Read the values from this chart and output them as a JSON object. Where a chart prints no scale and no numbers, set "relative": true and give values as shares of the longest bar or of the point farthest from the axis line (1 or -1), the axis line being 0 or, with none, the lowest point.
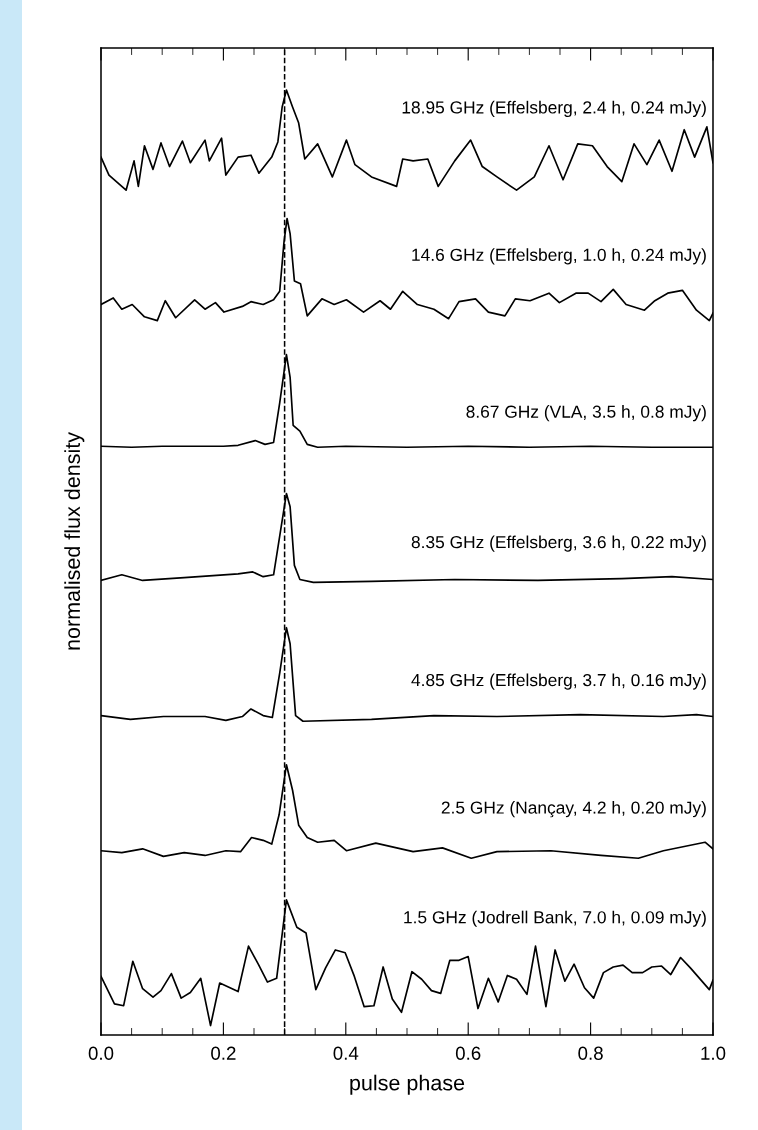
{
  "chart_data": {
    "type": "line",
    "relative": true,
    "xlabel": "pulse phase",
    "ylabel": "normalised flux density",
    "xlim": [
      0,
      1
    ],
    "xticks": [
      {
        "value": 0,
        "label": "0.0"
      },
      {
        "value": 0.05,
        "label": null
      },
      {
        "value": 0.1,
        "label": null
      },
      {
        "value": 0.15,
        "label": null
      },
      {
        "value": 0.2,
        "label": "0.2"
      },
      {
        "value": 0.25,
        "label": null
      },
      {
        "value": 0.3,
        "label": null
      },
      {
        "value": 0.35,
        "label": null
      },
      {
        "value": 0.4,
        "label": "0.4"
      },
      {
        "value": 0.45,
        "label": null
      },
      {
        "value": 0.5,
        "label": null
      },
      {
        "value": 0.55,
        "label": null
      },
      {
        "value": 0.6,
        "label": "0.6"
      },
      {
        "value": 0.65,
        "label": null
      },
      {
        "value": 0.7,
        "label": null
      },
      {
        "value": 0.75,
        "label": null
      },
      {
        "value": 0.8,
        "label": "0.8"
      },
      {
        "value": 0.85,
        "label": null
      },
      {
        "value": 0.9,
        "label": null
      },
      {
        "value": 0.95,
        "label": null
      },
      {
        "value": 1,
        "label": "1.0"
      }
    ],
    "tick_labels": "x",
    "grid": false,
    "legend": false,
    "marker": "none",
    "line_style": "solid",
    "ref_lines": [
      {
        "axis": "x",
        "value": 0.3,
        "label": null,
        "color": "#000000",
        "line_style": "dashed"
      }
    ],
    "series": [
      {
        "name": "18.95 GHz (Effelsberg, 2.4 h, 0.24 mJy)",
        "color": "#000000",
        "x": [
          0,
          0.013,
          0.041,
          0.054,
          0.061,
          0.071,
          0.085,
          0.098,
          0.112,
          0.133,
          0.146,
          0.17,
          0.177,
          0.197,
          0.204,
          0.224,
          0.245,
          0.258,
          0.279,
          0.289,
          0.296,
          0.303,
          0.313,
          0.323,
          0.333,
          0.354,
          0.378,
          0.401,
          0.415,
          0.442,
          0.483,
          0.493,
          0.51,
          0.534,
          0.551,
          0.578,
          0.604,
          0.623,
          0.647,
          0.679,
          0.708,
          0.732,
          0.755,
          0.779,
          0.803,
          0.827,
          0.851,
          0.871,
          0.892,
          0.912,
          0.933,
          0.953,
          0.97,
          0.99,
          1.0
        ],
        "values": [
          0.929,
          0.91,
          0.894,
          0.925,
          0.898,
          0.941,
          0.916,
          0.944,
          0.919,
          0.946,
          0.923,
          0.947,
          0.925,
          0.949,
          0.91,
          0.929,
          0.931,
          0.912,
          0.929,
          0.945,
          0.982,
          1.0,
          0.982,
          0.965,
          0.927,
          0.943,
          0.908,
          0.947,
          0.921,
          0.908,
          0.898,
          0.927,
          0.925,
          0.927,
          0.898,
          0.925,
          0.947,
          0.919,
          0.908,
          0.894,
          0.908,
          0.941,
          0.905,
          0.943,
          0.941,
          0.919,
          0.903,
          0.943,
          0.921,
          0.947,
          0.914,
          0.958,
          0.929,
          0.961,
          0.923
        ]
      },
      {
        "name": "14.6 GHz (Effelsberg, 1.0 h, 0.24 mJy)",
        "color": "#000000",
        "x": [
          0,
          0.02,
          0.034,
          0.051,
          0.071,
          0.092,
          0.105,
          0.122,
          0.153,
          0.17,
          0.187,
          0.201,
          0.231,
          0.245,
          0.265,
          0.282,
          0.292,
          0.299,
          0.304,
          0.309,
          0.316,
          0.326,
          0.337,
          0.361,
          0.381,
          0.401,
          0.429,
          0.456,
          0.473,
          0.493,
          0.517,
          0.544,
          0.568,
          0.585,
          0.612,
          0.633,
          0.66,
          0.677,
          0.701,
          0.732,
          0.749,
          0.776,
          0.796,
          0.817,
          0.837,
          0.858,
          0.888,
          0.905,
          0.926,
          0.95,
          0.973,
          0.994,
          1.0
        ],
        "values": [
          0.773,
          0.78,
          0.768,
          0.773,
          0.76,
          0.756,
          0.777,
          0.759,
          0.778,
          0.768,
          0.775,
          0.765,
          0.771,
          0.776,
          0.773,
          0.778,
          0.787,
          0.839,
          0.864,
          0.848,
          0.798,
          0.795,
          0.761,
          0.779,
          0.773,
          0.778,
          0.765,
          0.777,
          0.768,
          0.787,
          0.773,
          0.768,
          0.758,
          0.776,
          0.779,
          0.765,
          0.761,
          0.779,
          0.777,
          0.785,
          0.775,
          0.785,
          0.785,
          0.776,
          0.789,
          0.773,
          0.767,
          0.777,
          0.785,
          0.788,
          0.767,
          0.756,
          0.764
        ]
      },
      {
        "name": "8.67 GHz (VLA, 3.5 h, 0.8 mJy)",
        "color": "#000000",
        "x": [
          0,
          0.05,
          0.1,
          0.15,
          0.2,
          0.224,
          0.252,
          0.268,
          0.282,
          0.292,
          0.303,
          0.309,
          0.314,
          0.325,
          0.337,
          0.354,
          0.4,
          0.5,
          0.6,
          0.7,
          0.8,
          0.9,
          1.0
        ],
        "values": [
          0.623,
          0.622,
          0.623,
          0.623,
          0.623,
          0.624,
          0.629,
          0.625,
          0.627,
          0.669,
          0.72,
          0.696,
          0.645,
          0.639,
          0.625,
          0.622,
          0.623,
          0.622,
          0.623,
          0.622,
          0.623,
          0.622,
          0.622
        ]
      },
      {
        "name": "8.35 GHz (Effelsberg, 3.6 h, 0.22 mJy)",
        "color": "#000000",
        "x": [
          0,
          0.034,
          0.068,
          0.136,
          0.224,
          0.248,
          0.265,
          0.282,
          0.292,
          0.303,
          0.309,
          0.316,
          0.325,
          0.347,
          0.442,
          0.578,
          0.714,
          0.851,
          0.933,
          1.0
        ],
        "values": [
          0.481,
          0.487,
          0.481,
          0.484,
          0.488,
          0.49,
          0.485,
          0.487,
          0.528,
          0.573,
          0.559,
          0.497,
          0.482,
          0.479,
          0.48,
          0.482,
          0.481,
          0.483,
          0.485,
          0.482
        ]
      },
      {
        "name": "4.85 GHz (Effelsberg, 3.7 h, 0.16 mJy)",
        "color": "#000000",
        "x": [
          0,
          0.048,
          0.102,
          0.17,
          0.204,
          0.231,
          0.245,
          0.265,
          0.28,
          0.292,
          0.303,
          0.309,
          0.318,
          0.33,
          0.442,
          0.544,
          0.647,
          0.783,
          0.919,
          0.973,
          1.0
        ],
        "values": [
          0.338,
          0.334,
          0.337,
          0.337,
          0.333,
          0.337,
          0.345,
          0.338,
          0.336,
          0.383,
          0.431,
          0.414,
          0.338,
          0.332,
          0.334,
          0.338,
          0.337,
          0.339,
          0.337,
          0.339,
          0.337
        ]
      },
      {
        "name": "2.5 GHz (Nançay, 4.2 h, 0.20 mJy)",
        "color": "#000000",
        "x": [
          0,
          0.034,
          0.068,
          0.102,
          0.136,
          0.17,
          0.204,
          0.228,
          0.246,
          0.265,
          0.279,
          0.291,
          0.303,
          0.313,
          0.323,
          0.337,
          0.354,
          0.381,
          0.401,
          0.449,
          0.51,
          0.558,
          0.605,
          0.647,
          0.735,
          0.817,
          0.878,
          0.919,
          0.987,
          1.0
        ],
        "values": [
          0.195,
          0.193,
          0.197,
          0.189,
          0.193,
          0.19,
          0.195,
          0.194,
          0.209,
          0.206,
          0.202,
          0.233,
          0.286,
          0.259,
          0.222,
          0.209,
          0.204,
          0.206,
          0.195,
          0.203,
          0.194,
          0.198,
          0.187,
          0.194,
          0.195,
          0.19,
          0.187,
          0.195,
          0.204,
          0.197
        ]
      },
      {
        "name": "1.5 GHz (Jodrell Bank, 7.0 h, 0.09 mJy)",
        "color": "#000000",
        "x": [
          0,
          0.022,
          0.037,
          0.052,
          0.068,
          0.085,
          0.098,
          0.115,
          0.131,
          0.146,
          0.163,
          0.179,
          0.194,
          0.224,
          0.241,
          0.257,
          0.272,
          0.287,
          0.303,
          0.32,
          0.335,
          0.351,
          0.367,
          0.383,
          0.399,
          0.414,
          0.43,
          0.446,
          0.461,
          0.476,
          0.491,
          0.508,
          0.524,
          0.54,
          0.555,
          0.57,
          0.585,
          0.6,
          0.616,
          0.633,
          0.649,
          0.664,
          0.679,
          0.696,
          0.71,
          0.727,
          0.742,
          0.758,
          0.773,
          0.79,
          0.805,
          0.821,
          0.837,
          0.853,
          0.868,
          0.885,
          0.9,
          0.916,
          0.931,
          0.947,
          0.963,
          0.994,
          1.0
        ],
        "values": [
          0.062,
          0.033,
          0.031,
          0.078,
          0.049,
          0.04,
          0.047,
          0.065,
          0.039,
          0.045,
          0.06,
          0.01,
          0.055,
          0.046,
          0.094,
          0.075,
          0.056,
          0.06,
          0.143,
          0.114,
          0.108,
          0.048,
          0.071,
          0.09,
          0.087,
          0.062,
          0.03,
          0.031,
          0.072,
          0.038,
          0.024,
          0.067,
          0.059,
          0.047,
          0.044,
          0.079,
          0.079,
          0.083,
          0.028,
          0.06,
          0.035,
          0.063,
          0.059,
          0.043,
          0.094,
          0.03,
          0.09,
          0.057,
          0.075,
          0.05,
          0.039,
          0.066,
          0.072,
          0.074,
          0.066,
          0.066,
          0.072,
          0.073,
          0.064,
          0.082,
          0.071,
          0.048,
          0.058
        ]
      }
    ]
  }
}
